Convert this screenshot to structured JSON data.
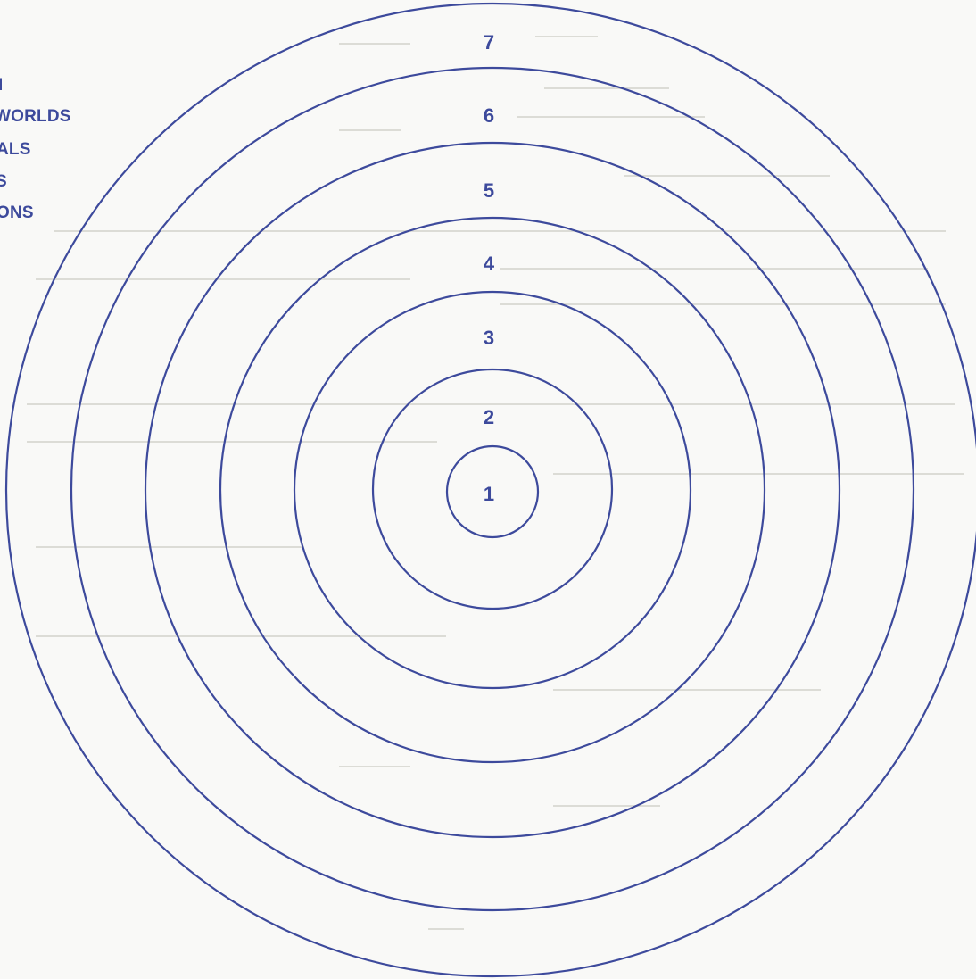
{
  "colors": {
    "ink": "#3d4a9c",
    "paper": "#f9f9f7",
    "bleed": "#dcdcd6"
  },
  "side_labels": [
    {
      "id": "l1",
      "text": "I"
    },
    {
      "id": "l2",
      "text": "WORLDS"
    },
    {
      "id": "l3",
      "text": "ALS"
    },
    {
      "id": "l4",
      "text": "S"
    },
    {
      "id": "l5",
      "text": "ONS"
    }
  ],
  "rings": [
    {
      "label": "1"
    },
    {
      "label": "2"
    },
    {
      "label": "3"
    },
    {
      "label": "4"
    },
    {
      "label": "5"
    },
    {
      "label": "6"
    },
    {
      "label": "7"
    }
  ]
}
